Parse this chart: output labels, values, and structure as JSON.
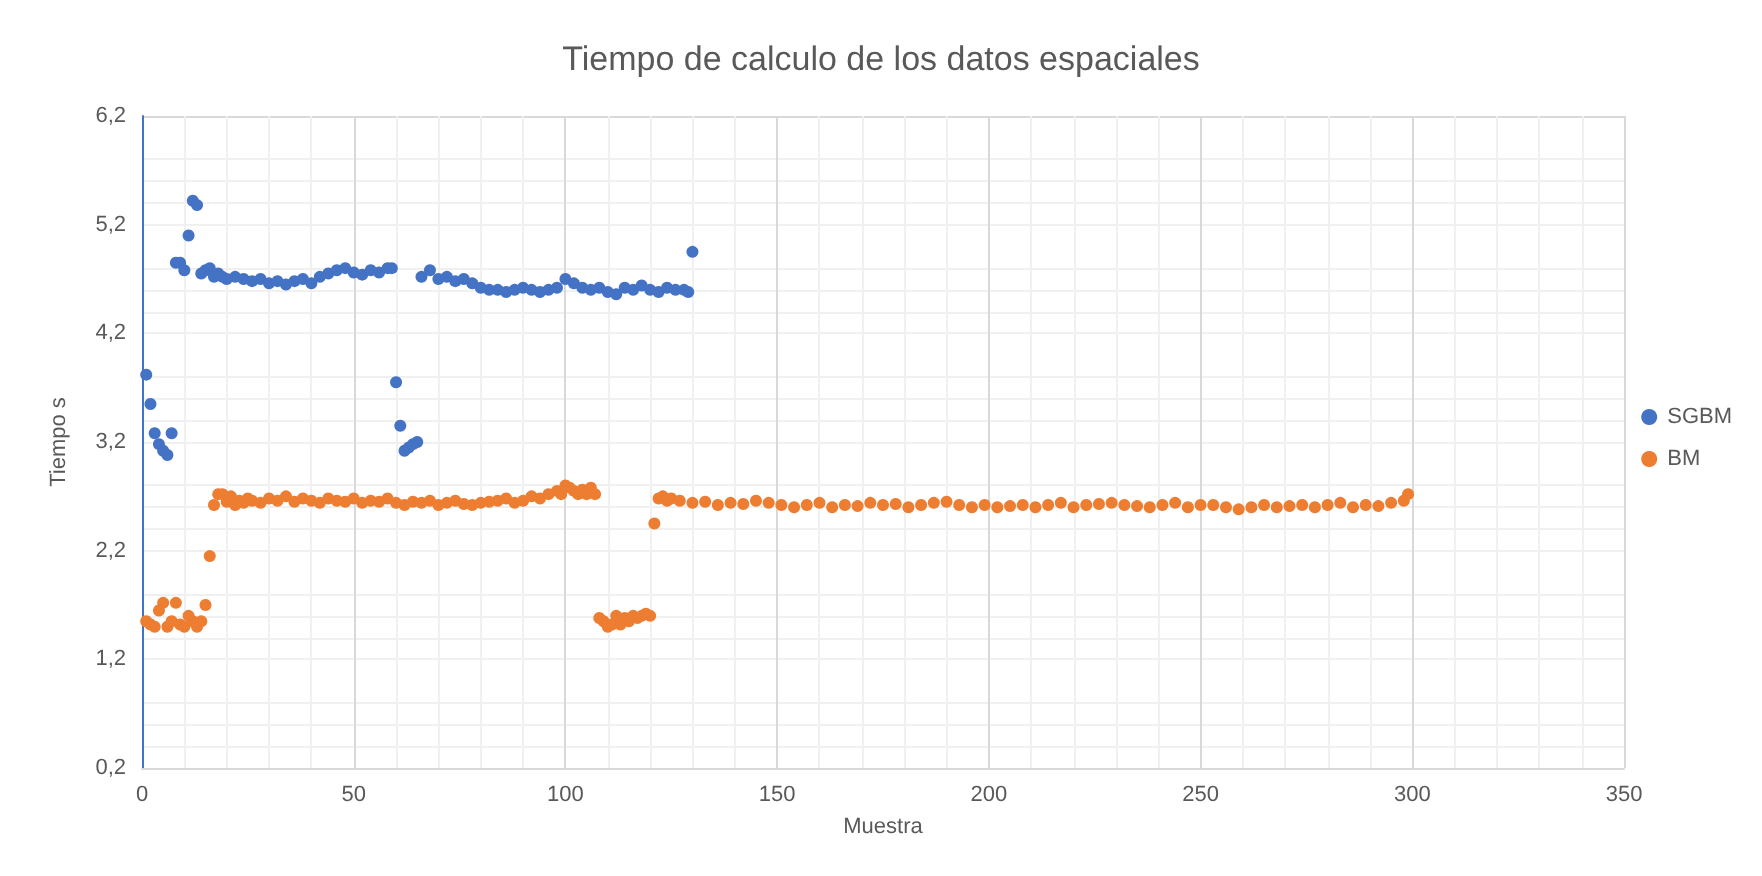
{
  "chart_data": {
    "type": "scatter",
    "title": "Tiempo de calculo de los datos espaciales",
    "xlabel": "Muestra",
    "ylabel": "Tiempo s",
    "xlim": [
      0,
      350
    ],
    "xticks": [
      0,
      50,
      100,
      150,
      200,
      250,
      300,
      350
    ],
    "ylim": [
      0.2,
      6.2
    ],
    "yticks": [
      {
        "value": 0.2,
        "label": "0,2"
      },
      {
        "value": 1.2,
        "label": "1,2"
      },
      {
        "value": 2.2,
        "label": "2,2"
      },
      {
        "value": 3.2,
        "label": "3,2"
      },
      {
        "value": 4.2,
        "label": "4,2"
      },
      {
        "value": 5.2,
        "label": "5,2"
      },
      {
        "value": 6.2,
        "label": "6,2"
      }
    ],
    "grid": true,
    "legend": "right",
    "marker": "circle",
    "series": [
      {
        "name": "SGBM",
        "color": "#4472c4",
        "x": [
          1,
          2,
          3,
          4,
          5,
          6,
          7,
          8,
          9,
          10,
          11,
          12,
          13,
          14,
          15,
          16,
          17,
          18,
          19,
          20,
          22,
          24,
          26,
          28,
          30,
          32,
          34,
          36,
          38,
          40,
          42,
          44,
          46,
          48,
          50,
          52,
          54,
          56,
          58,
          59,
          60,
          61,
          62,
          63,
          64,
          65,
          66,
          68,
          70,
          72,
          74,
          76,
          78,
          80,
          82,
          84,
          86,
          88,
          90,
          92,
          94,
          96,
          98,
          100,
          102,
          104,
          106,
          108,
          110,
          112,
          114,
          116,
          118,
          120,
          122,
          124,
          126,
          128,
          129,
          130
        ],
        "values": [
          3.82,
          3.55,
          3.28,
          3.18,
          3.12,
          3.08,
          3.28,
          4.85,
          4.85,
          4.78,
          5.1,
          5.42,
          5.38,
          4.75,
          4.78,
          4.8,
          4.72,
          4.75,
          4.72,
          4.7,
          4.72,
          4.7,
          4.68,
          4.7,
          4.66,
          4.68,
          4.65,
          4.68,
          4.7,
          4.66,
          4.72,
          4.75,
          4.78,
          4.8,
          4.76,
          4.74,
          4.78,
          4.76,
          4.8,
          4.8,
          3.75,
          3.35,
          3.12,
          3.15,
          3.18,
          3.2,
          4.72,
          4.78,
          4.7,
          4.72,
          4.68,
          4.7,
          4.66,
          4.62,
          4.6,
          4.6,
          4.58,
          4.6,
          4.62,
          4.6,
          4.58,
          4.6,
          4.62,
          4.7,
          4.66,
          4.62,
          4.6,
          4.62,
          4.58,
          4.56,
          4.62,
          4.6,
          4.64,
          4.6,
          4.58,
          4.62,
          4.6,
          4.6,
          4.58,
          4.95
        ]
      },
      {
        "name": "BM",
        "color": "#ed7d31",
        "x": [
          1,
          2,
          3,
          4,
          5,
          6,
          7,
          8,
          9,
          10,
          11,
          12,
          13,
          14,
          15,
          16,
          17,
          18,
          19,
          20,
          21,
          22,
          23,
          24,
          25,
          26,
          28,
          30,
          32,
          34,
          36,
          38,
          40,
          42,
          44,
          46,
          48,
          50,
          52,
          54,
          56,
          58,
          60,
          62,
          64,
          66,
          68,
          70,
          72,
          74,
          76,
          78,
          80,
          82,
          84,
          86,
          88,
          90,
          92,
          94,
          96,
          98,
          99,
          100,
          101,
          102,
          103,
          104,
          105,
          106,
          107,
          108,
          109,
          110,
          111,
          112,
          113,
          114,
          115,
          116,
          117,
          118,
          119,
          120,
          121,
          122,
          123,
          124,
          125,
          127,
          130,
          133,
          136,
          139,
          142,
          145,
          148,
          151,
          154,
          157,
          160,
          163,
          166,
          169,
          172,
          175,
          178,
          181,
          184,
          187,
          190,
          193,
          196,
          199,
          202,
          205,
          208,
          211,
          214,
          217,
          220,
          223,
          226,
          229,
          232,
          235,
          238,
          241,
          244,
          247,
          250,
          253,
          256,
          259,
          262,
          265,
          268,
          271,
          274,
          277,
          280,
          283,
          286,
          289,
          292,
          295,
          298,
          299
        ],
        "values": [
          1.55,
          1.52,
          1.5,
          1.65,
          1.72,
          1.5,
          1.55,
          1.72,
          1.52,
          1.5,
          1.6,
          1.55,
          1.5,
          1.55,
          1.7,
          2.15,
          2.62,
          2.72,
          2.72,
          2.65,
          2.7,
          2.62,
          2.66,
          2.64,
          2.68,
          2.66,
          2.64,
          2.68,
          2.66,
          2.7,
          2.65,
          2.68,
          2.66,
          2.64,
          2.68,
          2.66,
          2.65,
          2.68,
          2.64,
          2.66,
          2.65,
          2.68,
          2.64,
          2.62,
          2.65,
          2.64,
          2.66,
          2.62,
          2.64,
          2.66,
          2.63,
          2.62,
          2.64,
          2.65,
          2.66,
          2.68,
          2.64,
          2.66,
          2.7,
          2.68,
          2.72,
          2.75,
          2.72,
          2.8,
          2.78,
          2.75,
          2.72,
          2.76,
          2.72,
          2.78,
          2.72,
          1.58,
          1.55,
          1.5,
          1.52,
          1.6,
          1.52,
          1.58,
          1.55,
          1.6,
          1.58,
          1.6,
          1.62,
          1.6,
          2.45,
          2.68,
          2.7,
          2.66,
          2.68,
          2.66,
          2.64,
          2.65,
          2.62,
          2.64,
          2.63,
          2.66,
          2.64,
          2.62,
          2.6,
          2.62,
          2.64,
          2.6,
          2.62,
          2.61,
          2.64,
          2.62,
          2.63,
          2.6,
          2.62,
          2.64,
          2.65,
          2.62,
          2.6,
          2.62,
          2.6,
          2.61,
          2.62,
          2.6,
          2.62,
          2.64,
          2.6,
          2.62,
          2.63,
          2.64,
          2.62,
          2.61,
          2.6,
          2.62,
          2.64,
          2.6,
          2.62,
          2.62,
          2.6,
          2.58,
          2.6,
          2.62,
          2.6,
          2.61,
          2.62,
          2.6,
          2.62,
          2.64,
          2.6,
          2.62,
          2.61,
          2.64,
          2.66,
          2.72
        ]
      }
    ]
  }
}
